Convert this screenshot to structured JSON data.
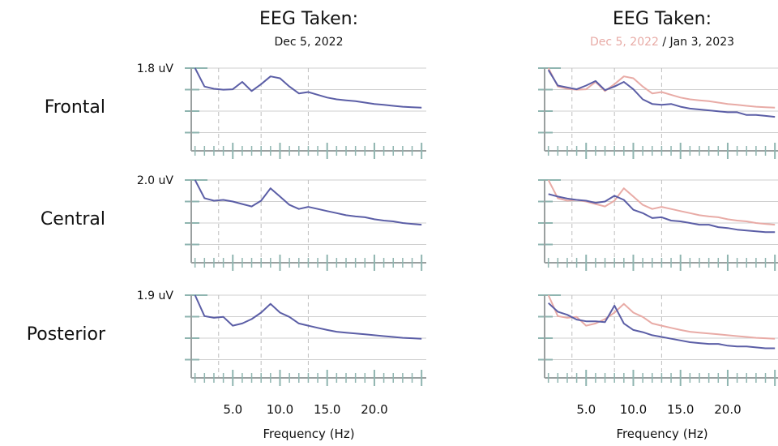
{
  "chart_data": {
    "type": "line",
    "columns": [
      {
        "title": "EEG Taken:",
        "subtitle_parts": [
          {
            "text": "Dec 5, 2022",
            "color": "#111111"
          }
        ],
        "xlabel": "Frequency (Hz)",
        "series_colors": [
          "#5b5ea6"
        ]
      },
      {
        "title": "EEG Taken:",
        "subtitle_parts": [
          {
            "text": "Dec 5, 2022",
            "color": "#e8aba6"
          },
          {
            "text": " / Jan 3, 2023",
            "color": "#111111"
          }
        ],
        "xlabel": "Frequency (Hz)",
        "series_colors": [
          "#e8aba6",
          "#5b5ea6"
        ]
      }
    ],
    "rows": [
      {
        "label": "Frontal",
        "ymax_label": "1.8 uV",
        "ylim": [
          0,
          1.8
        ],
        "series": [
          {
            "x": [
              1,
              2,
              3,
              4,
              5,
              6,
              7,
              8,
              9,
              10,
              11,
              12,
              13,
              14,
              15,
              16,
              17,
              18,
              19,
              20,
              21,
              22,
              23,
              24,
              25
            ],
            "y": [
              1.8,
              1.4,
              1.35,
              1.33,
              1.34,
              1.5,
              1.3,
              1.45,
              1.62,
              1.58,
              1.4,
              1.25,
              1.28,
              1.22,
              1.16,
              1.12,
              1.1,
              1.08,
              1.05,
              1.02,
              1.0,
              0.98,
              0.96,
              0.95,
              0.94
            ]
          },
          {
            "x": [
              1,
              2,
              3,
              4,
              5,
              6,
              7,
              8,
              9,
              10,
              11,
              12,
              13,
              14,
              15,
              16,
              17,
              18,
              19,
              20,
              21,
              22,
              23,
              24,
              25
            ],
            "y": [
              1.76,
              1.42,
              1.38,
              1.34,
              1.42,
              1.52,
              1.32,
              1.4,
              1.5,
              1.34,
              1.12,
              1.02,
              1.0,
              1.02,
              0.96,
              0.92,
              0.9,
              0.88,
              0.86,
              0.84,
              0.84,
              0.78,
              0.78,
              0.76,
              0.74
            ]
          }
        ]
      },
      {
        "label": "Central",
        "ymax_label": "2.0 uV",
        "ylim": [
          0,
          2.0
        ],
        "series": [
          {
            "x": [
              1,
              2,
              3,
              4,
              5,
              6,
              7,
              8,
              9,
              10,
              11,
              12,
              13,
              14,
              15,
              16,
              17,
              18,
              19,
              20,
              21,
              22,
              23,
              24,
              25
            ],
            "y": [
              2.0,
              1.56,
              1.5,
              1.52,
              1.48,
              1.42,
              1.36,
              1.5,
              1.8,
              1.6,
              1.4,
              1.3,
              1.35,
              1.3,
              1.25,
              1.2,
              1.15,
              1.12,
              1.1,
              1.05,
              1.02,
              1.0,
              0.96,
              0.94,
              0.92
            ]
          },
          {
            "x": [
              1,
              2,
              3,
              4,
              5,
              6,
              7,
              8,
              9,
              10,
              11,
              12,
              13,
              14,
              15,
              16,
              17,
              18,
              19,
              20,
              21,
              22,
              23,
              24,
              25
            ],
            "y": [
              1.66,
              1.6,
              1.55,
              1.52,
              1.5,
              1.45,
              1.48,
              1.62,
              1.52,
              1.28,
              1.2,
              1.08,
              1.1,
              1.02,
              1.0,
              0.96,
              0.92,
              0.92,
              0.86,
              0.84,
              0.8,
              0.78,
              0.76,
              0.74,
              0.74
            ]
          }
        ]
      },
      {
        "label": "Posterior",
        "ymax_label": "1.9 uV",
        "ylim": [
          0,
          1.9
        ],
        "series": [
          {
            "x": [
              1,
              2,
              3,
              4,
              5,
              6,
              7,
              8,
              9,
              10,
              11,
              12,
              13,
              14,
              15,
              16,
              17,
              18,
              19,
              20,
              21,
              22,
              23,
              24,
              25
            ],
            "y": [
              1.9,
              1.42,
              1.38,
              1.4,
              1.2,
              1.25,
              1.35,
              1.5,
              1.7,
              1.5,
              1.4,
              1.25,
              1.2,
              1.15,
              1.1,
              1.06,
              1.04,
              1.02,
              1.0,
              0.98,
              0.96,
              0.94,
              0.92,
              0.91,
              0.9
            ]
          },
          {
            "x": [
              1,
              2,
              3,
              4,
              5,
              6,
              7,
              8,
              9,
              10,
              11,
              12,
              13,
              14,
              15,
              16,
              17,
              18,
              19,
              20,
              21,
              22,
              23,
              24,
              25
            ],
            "y": [
              1.72,
              1.52,
              1.45,
              1.34,
              1.3,
              1.3,
              1.28,
              1.66,
              1.25,
              1.1,
              1.05,
              0.98,
              0.94,
              0.9,
              0.86,
              0.82,
              0.8,
              0.78,
              0.78,
              0.74,
              0.72,
              0.72,
              0.7,
              0.68,
              0.68
            ]
          }
        ]
      }
    ],
    "xticks": [
      "5.0",
      "10.0",
      "15.0",
      "20.0"
    ],
    "xtick_values": [
      5,
      10,
      15,
      20
    ],
    "xlim": [
      0.6,
      25.5
    ],
    "dashed_vlines": [
      3.5,
      8,
      13
    ],
    "grid": true
  }
}
